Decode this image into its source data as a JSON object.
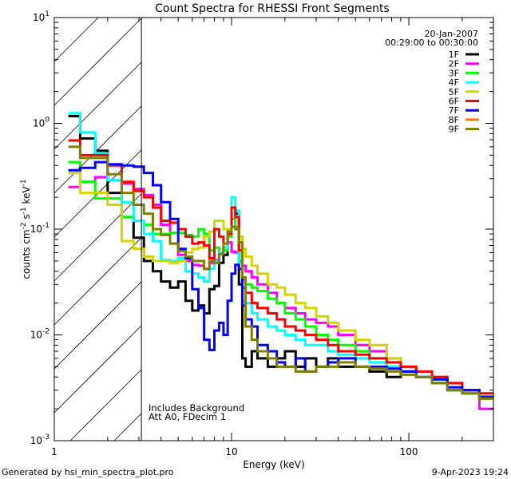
{
  "chart_data": {
    "type": "line",
    "title": "Count Spectra for RHESSI Front Segments",
    "xlabel": "Energy (keV)",
    "ylabel": "counts cm",
    "ylabel_parts": [
      "counts cm",
      "-2",
      " s",
      "-1",
      " keV",
      "-1"
    ],
    "xscale": "log",
    "yscale": "log",
    "xlim": [
      1,
      300
    ],
    "ylim": [
      0.001,
      10
    ],
    "x_ticks": [
      {
        "v": 1,
        "label": "1"
      },
      {
        "v": 10,
        "label": "10"
      },
      {
        "v": 100,
        "label": "100"
      }
    ],
    "y_ticks": [
      {
        "v": 10,
        "base": "10",
        "exp": "1"
      },
      {
        "v": 1,
        "base": "10",
        "exp": "0"
      },
      {
        "v": 0.1,
        "base": "10",
        "exp": "-1"
      },
      {
        "v": 0.01,
        "base": "10",
        "exp": "-2"
      },
      {
        "v": 0.001,
        "base": "10",
        "exp": "-3"
      }
    ],
    "shaded_region_kev": [
      1,
      3.1
    ],
    "date": "20-Jan-2007",
    "time_range": "00:29:00 to 00:30:00",
    "annotations": [
      "Includes Background",
      "Att A0, FDecim 1"
    ],
    "legend_placement": "top-right",
    "bin_edges": [
      1.2,
      1.4,
      1.7,
      2.0,
      2.4,
      2.8,
      3.2,
      3.6,
      4.0,
      4.5,
      5.0,
      5.5,
      6.0,
      6.5,
      7.0,
      7.5,
      8.0,
      8.5,
      9.0,
      9.5,
      10.0,
      10.5,
      11.0,
      11.5,
      12.0,
      13,
      14,
      16,
      18,
      20,
      23,
      26,
      30,
      35,
      40,
      50,
      60,
      75,
      90,
      110,
      135,
      165,
      200,
      250,
      300
    ],
    "series": [
      {
        "name": "1F",
        "color": "#000000",
        "values": [
          1.17,
          0.72,
          0.55,
          0.22,
          0.13,
          0.083,
          0.05,
          0.04,
          0.032,
          0.028,
          0.032,
          0.021,
          0.017,
          0.019,
          0.016,
          0.027,
          0.029,
          0.048,
          0.057,
          0.095,
          0.16,
          0.14,
          0.03,
          0.006,
          0.005,
          0.007,
          0.006,
          0.005,
          0.006,
          0.007,
          0.005,
          0.006,
          0.005,
          0.006,
          0.005,
          0.005,
          0.0045,
          0.004,
          0.0045,
          0.004,
          0.0035,
          0.003,
          0.003,
          0.0025
        ]
      },
      {
        "name": "2F",
        "color": "#ff00ff",
        "values": [
          0.25,
          0.28,
          0.31,
          0.29,
          0.27,
          0.24,
          0.21,
          0.17,
          0.11,
          0.073,
          0.057,
          0.05,
          0.046,
          0.045,
          0.042,
          0.048,
          0.051,
          0.06,
          0.067,
          0.075,
          0.061,
          0.06,
          0.05,
          0.045,
          0.04,
          0.035,
          0.03,
          0.025,
          0.02,
          0.018,
          0.016,
          0.014,
          0.013,
          0.012,
          0.01,
          0.008,
          0.007,
          0.006,
          0.005,
          0.0045,
          0.004,
          0.0035,
          0.003,
          0.002
        ]
      },
      {
        "name": "3F",
        "color": "#00ff00",
        "values": [
          0.43,
          0.28,
          0.195,
          0.195,
          0.13,
          0.12,
          0.11,
          0.09,
          0.09,
          0.092,
          0.092,
          0.088,
          0.085,
          0.1,
          0.09,
          0.063,
          0.067,
          0.06,
          0.063,
          0.085,
          0.125,
          0.105,
          0.048,
          0.033,
          0.03,
          0.028,
          0.026,
          0.022,
          0.02,
          0.016,
          0.014,
          0.012,
          0.01,
          0.009,
          0.008,
          0.007,
          0.006,
          0.005,
          0.0045,
          0.004,
          0.0035,
          0.003,
          0.0028,
          0.0025
        ]
      },
      {
        "name": "4F",
        "color": "#00ffff",
        "values": [
          1.25,
          0.82,
          0.52,
          0.29,
          0.18,
          0.12,
          0.09,
          0.077,
          0.051,
          0.05,
          0.053,
          0.04,
          0.038,
          0.035,
          0.032,
          0.042,
          0.05,
          0.06,
          0.067,
          0.095,
          0.2,
          0.15,
          0.048,
          0.021,
          0.02,
          0.016,
          0.014,
          0.012,
          0.011,
          0.01,
          0.009,
          0.008,
          0.008,
          0.007,
          0.0065,
          0.006,
          0.0055,
          0.005,
          0.0045,
          0.004,
          0.0038,
          0.0035,
          0.003,
          0.0028
        ]
      },
      {
        "name": "5F",
        "color": "#d4d400",
        "values": [
          0.34,
          0.22,
          0.22,
          0.17,
          0.077,
          0.065,
          0.055,
          0.05,
          0.05,
          0.048,
          0.05,
          0.06,
          0.065,
          0.067,
          0.085,
          0.095,
          0.12,
          0.12,
          0.1,
          0.1,
          0.105,
          0.1,
          0.085,
          0.065,
          0.055,
          0.045,
          0.038,
          0.03,
          0.028,
          0.024,
          0.02,
          0.018,
          0.015,
          0.013,
          0.011,
          0.009,
          0.008,
          0.006,
          0.005,
          0.0045,
          0.004,
          0.0035,
          0.003,
          0.0028
        ]
      },
      {
        "name": "6F",
        "color": "#ff0000",
        "values": [
          0.69,
          0.5,
          0.5,
          0.4,
          0.28,
          0.23,
          0.2,
          0.16,
          0.12,
          0.115,
          0.1,
          0.085,
          0.073,
          0.075,
          0.07,
          0.053,
          0.1,
          0.085,
          0.073,
          0.09,
          0.16,
          0.13,
          0.063,
          0.028,
          0.025,
          0.02,
          0.018,
          0.016,
          0.014,
          0.012,
          0.011,
          0.01,
          0.009,
          0.008,
          0.007,
          0.0065,
          0.006,
          0.0055,
          0.005,
          0.0045,
          0.004,
          0.0035,
          0.003,
          0.0028
        ]
      },
      {
        "name": "7F",
        "color": "#0000ff",
        "values": [
          0.36,
          0.38,
          0.43,
          0.41,
          0.4,
          0.39,
          0.34,
          0.26,
          0.18,
          0.125,
          0.065,
          0.053,
          0.027,
          0.018,
          0.009,
          0.0072,
          0.011,
          0.013,
          0.01,
          0.021,
          0.038,
          0.046,
          0.042,
          0.019,
          0.014,
          0.012,
          0.008,
          0.007,
          0.0055,
          0.005,
          0.006,
          0.0045,
          0.005,
          0.0055,
          0.006,
          0.005,
          0.005,
          0.0048,
          0.0045,
          0.004,
          0.0038,
          0.0032,
          0.003,
          0.0026
        ]
      },
      {
        "name": "8F",
        "color": "#ff8000",
        "values": []
      },
      {
        "name": "9F",
        "color": "#808000",
        "values": [
          0.6,
          0.47,
          0.47,
          0.33,
          0.22,
          0.17,
          0.14,
          0.1,
          0.088,
          0.073,
          0.062,
          0.055,
          0.05,
          0.05,
          0.042,
          0.05,
          0.048,
          0.058,
          0.073,
          0.095,
          0.105,
          0.1,
          0.075,
          0.035,
          0.012,
          0.009,
          0.007,
          0.006,
          0.005,
          0.005,
          0.0045,
          0.0045,
          0.005,
          0.005,
          0.0055,
          0.005,
          0.0048,
          0.0045,
          0.0042,
          0.004,
          0.0035,
          0.003,
          0.0028,
          0.0025
        ]
      }
    ]
  },
  "footer": {
    "generated_by": "Generated by hsi_min_spectra_plot.pro",
    "timestamp": "9-Apr-2023 19:24"
  }
}
